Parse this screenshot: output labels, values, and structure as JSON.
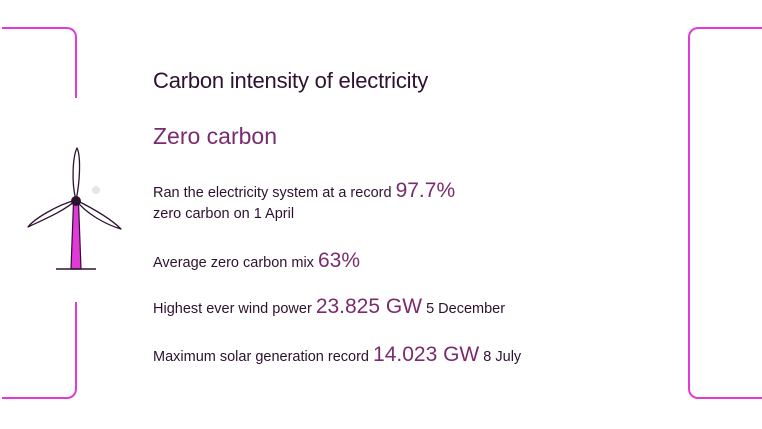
{
  "title": "Carbon intensity of electricity",
  "subtitle": "Zero carbon",
  "stats": [
    {
      "prefix": "Ran the electricity system at a record",
      "value": "97.7%",
      "suffix": "zero carbon on 1 April"
    },
    {
      "prefix": "Average zero carbon mix",
      "value": "63%",
      "suffix": ""
    },
    {
      "prefix": "Highest ever wind power",
      "value": "23.825 GW",
      "suffix": "5 December"
    },
    {
      "prefix": "Maximum solar generation record",
      "value": "14.023 GW",
      "suffix": "8 July"
    }
  ],
  "colors": {
    "accent": "#e23ad9",
    "heading": "#2d1230",
    "highlight": "#7a2b6e"
  },
  "icons": {
    "illustration": "wind-turbine-icon"
  }
}
